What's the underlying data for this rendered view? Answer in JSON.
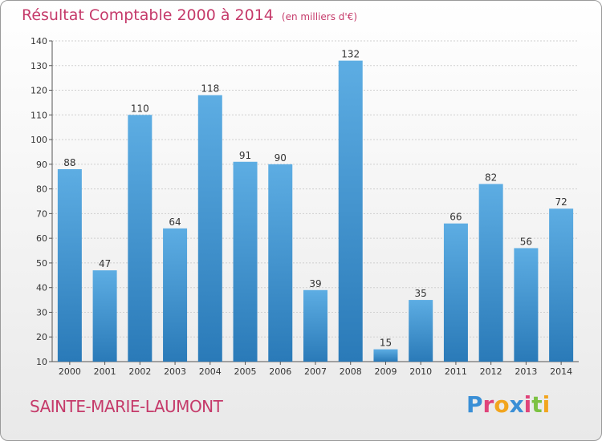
{
  "header": {
    "title": "Résultat Comptable 2000 à 2014",
    "subtitle": "(en milliers d'€)"
  },
  "footer": {
    "commune": "SAINTE-MARIE-LAUMONT",
    "logo_text": "Proxiti"
  },
  "colors": {
    "bar_light": "#5dade3",
    "bar_dark": "#2a7ab8",
    "title": "#c53a6a"
  },
  "chart_data": {
    "type": "bar",
    "title": "Résultat Comptable 2000 à 2014",
    "xlabel": "",
    "ylabel": "",
    "categories": [
      "2000",
      "2001",
      "2002",
      "2003",
      "2004",
      "2005",
      "2006",
      "2007",
      "2008",
      "2009",
      "2010",
      "2011",
      "2012",
      "2013",
      "2014"
    ],
    "values": [
      88,
      47,
      110,
      64,
      118,
      91,
      90,
      39,
      132,
      15,
      35,
      66,
      82,
      56,
      72
    ],
    "ylim": [
      10,
      140
    ],
    "yticks": [
      10,
      20,
      30,
      40,
      50,
      60,
      70,
      80,
      90,
      100,
      110,
      120,
      130,
      140
    ],
    "grid": true,
    "legend": "none"
  }
}
